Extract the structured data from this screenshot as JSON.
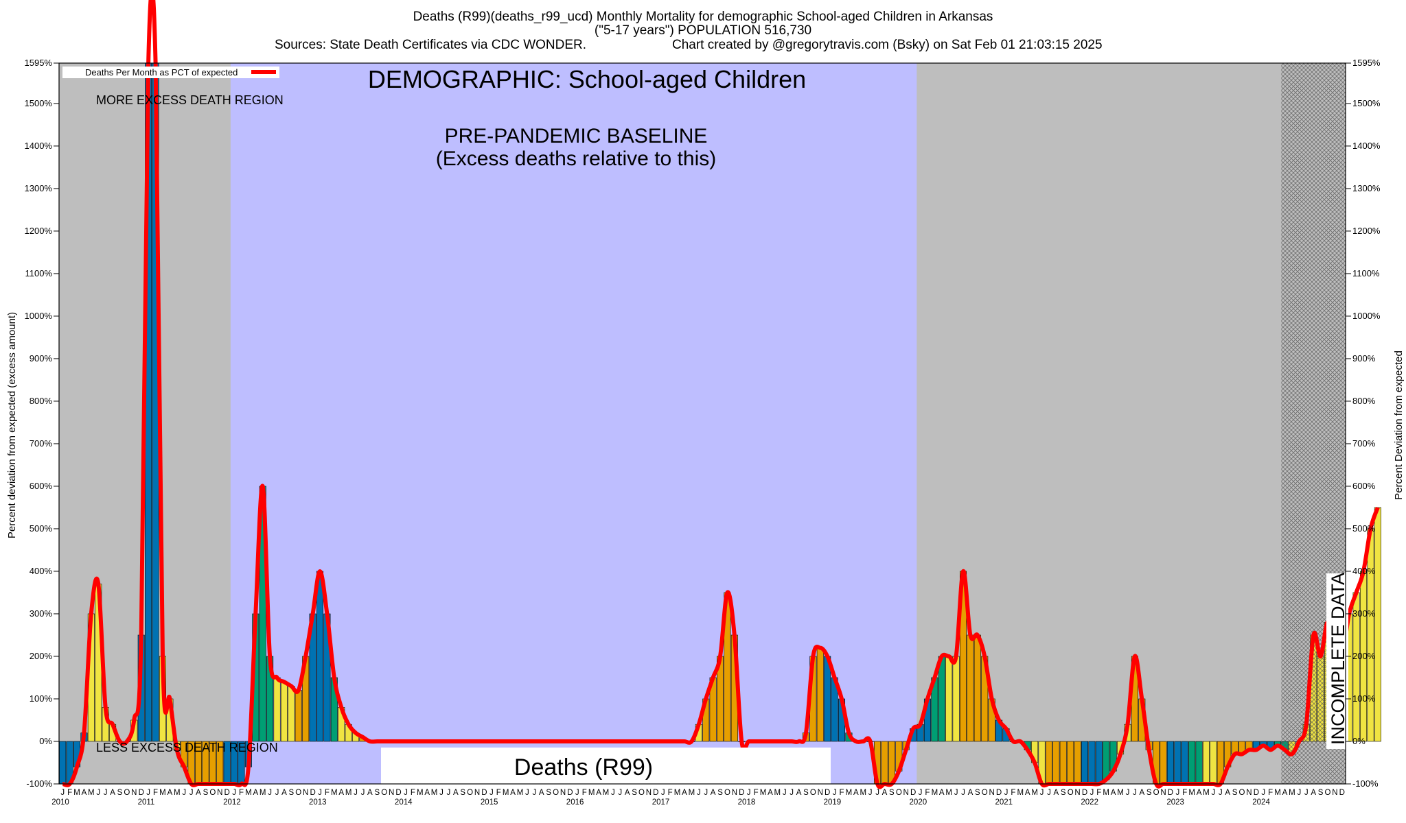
{
  "chart_data": {
    "type": "bar",
    "title_lines": [
      "Deaths (R99)(deaths_r99_ucd) Monthly Mortality for demographic School-aged Children in Arkansas",
      "(\"5-17 years\") POPULATION 516,730"
    ],
    "sources_line": "Sources: State Death Certificates via CDC WONDER.",
    "credit_line": "Chart created by @gregorytravis.com (Bsky) on Sat Feb 01 21:03:15 2025",
    "ylabel_left": "Percent deviation from expected (excess amount)",
    "ylabel_right": "Percent Deviation from expected",
    "ylim": [
      -100,
      1595
    ],
    "yticks": [
      "-100%",
      "0%",
      "100%",
      "200%",
      "300%",
      "400%",
      "500%",
      "600%",
      "700%",
      "800%",
      "900%",
      "1000%",
      "1100%",
      "1200%",
      "1300%",
      "1400%",
      "1500%",
      "1595%"
    ],
    "legend_label": "Deaths Per Month as PCT of expected",
    "legend_color": "#ff0000",
    "annotations": {
      "demographic": "DEMOGRAPHIC: School-aged Children",
      "baseline_line1": "PRE-PANDEMIC BASELINE",
      "baseline_line2": "(Excess deaths relative to this)",
      "more_excess": "MORE EXCESS DEATH REGION",
      "less_excess": "LESS EXCESS DEATH REGION",
      "incomplete": "INCOMPLETE DATA",
      "cause_box": "Deaths (R99)"
    },
    "month_letters": [
      "J",
      "F",
      "M",
      "A",
      "M",
      "J",
      "J",
      "A",
      "S",
      "O",
      "N",
      "D"
    ],
    "years": [
      "2010",
      "2011",
      "2012",
      "2013",
      "2014",
      "2015",
      "2016",
      "2017",
      "2018",
      "2019",
      "2020",
      "2021",
      "2022",
      "2023",
      "2024"
    ],
    "baseline_years": [
      "2012",
      "2019"
    ],
    "incomplete_from": "2024-04",
    "colors": {
      "background_gray": "#bebebe",
      "baseline_blue": "#bebeff",
      "bar_blue": "#0072b2",
      "bar_green": "#009e73",
      "bar_orange": "#e69f00",
      "bar_yellow": "#f0e442",
      "line_red": "#ff0000"
    },
    "values": [
      -100,
      -100,
      -60,
      20,
      300,
      370,
      80,
      40,
      0,
      0,
      50,
      250,
      1595,
      1595,
      200,
      100,
      -20,
      -60,
      -100,
      -100,
      -100,
      -100,
      -100,
      -100,
      -100,
      -100,
      -60,
      300,
      600,
      200,
      150,
      140,
      130,
      120,
      200,
      300,
      400,
      300,
      150,
      80,
      40,
      20,
      10,
      0,
      0,
      0,
      0,
      0,
      0,
      0,
      0,
      0,
      0,
      0,
      0,
      0,
      0,
      0,
      0,
      0,
      0,
      0,
      0,
      0,
      0,
      0,
      0,
      0,
      0,
      0,
      0,
      0,
      0,
      0,
      0,
      0,
      0,
      0,
      0,
      0,
      0,
      0,
      0,
      0,
      0,
      0,
      0,
      0,
      0,
      40,
      100,
      150,
      200,
      350,
      250,
      0,
      0,
      0,
      0,
      0,
      0,
      0,
      0,
      0,
      20,
      200,
      220,
      200,
      150,
      100,
      20,
      0,
      0,
      0,
      -100,
      -100,
      -100,
      -70,
      -20,
      30,
      40,
      100,
      150,
      200,
      200,
      200,
      400,
      250,
      250,
      200,
      100,
      50,
      30,
      0,
      0,
      -20,
      -50,
      -100,
      -100,
      -100,
      -100,
      -100,
      -100,
      -100,
      -100,
      -100,
      -90,
      -70,
      -30,
      40,
      200,
      100,
      -20,
      -100,
      -100,
      -100,
      -100,
      -100,
      -100,
      -100,
      -100,
      -100,
      -100,
      -60,
      -30,
      -30,
      -20,
      -20,
      -10,
      -20,
      -10,
      -20,
      -30,
      0,
      40,
      250,
      200,
      280,
      200,
      200,
      300,
      350,
      400,
      500,
      550
    ],
    "bar_colors": [
      "b",
      "b",
      "b",
      "b",
      "y",
      "y",
      "y",
      "y",
      "y",
      "y",
      "y",
      "b",
      "b",
      "b",
      "y",
      "y",
      "y",
      "o",
      "o",
      "o",
      "o",
      "o",
      "o",
      "b",
      "b",
      "b",
      "b",
      "g",
      "g",
      "g",
      "y",
      "y",
      "y",
      "o",
      "o",
      "b",
      "b",
      "b",
      "g",
      "y",
      "y",
      "y",
      "o",
      "o",
      "o",
      "o",
      "o",
      "b",
      "b",
      "b",
      "g",
      "g",
      "y",
      "y",
      "o",
      "o",
      "o",
      "o",
      "o",
      "b",
      "b",
      "b",
      "g",
      "g",
      "y",
      "y",
      "o",
      "o",
      "o",
      "o",
      "o",
      "b",
      "b",
      "b",
      "g",
      "g",
      "y",
      "y",
      "o",
      "o",
      "o",
      "o",
      "o",
      "b",
      "b",
      "b",
      "g",
      "g",
      "y",
      "y",
      "o",
      "o",
      "o",
      "o",
      "o",
      "b",
      "b",
      "b",
      "g",
      "g",
      "y",
      "y",
      "o",
      "o",
      "o",
      "o",
      "o",
      "b",
      "b",
      "b",
      "g",
      "g",
      "y",
      "y",
      "o",
      "o",
      "o",
      "o",
      "o",
      "b",
      "b",
      "b",
      "g",
      "g",
      "y",
      "y",
      "o",
      "o",
      "o",
      "o",
      "o",
      "b",
      "b",
      "b",
      "g",
      "g",
      "y",
      "y",
      "o",
      "o",
      "o",
      "o",
      "o",
      "b",
      "b",
      "b",
      "g",
      "g",
      "y",
      "y",
      "o",
      "o",
      "o",
      "o",
      "o",
      "b",
      "b",
      "b",
      "g",
      "g",
      "y",
      "y",
      "o",
      "o",
      "o",
      "o",
      "o",
      "b",
      "b",
      "b",
      "g",
      "g",
      "y"
    ]
  }
}
